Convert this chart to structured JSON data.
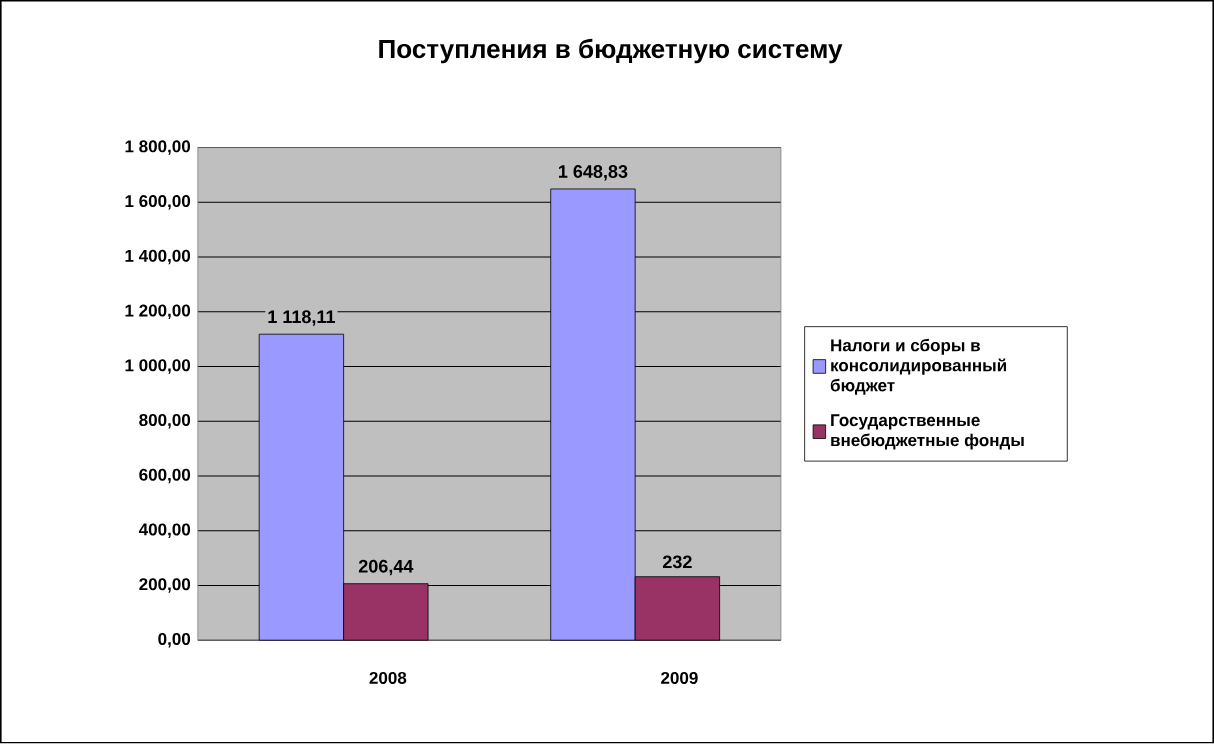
{
  "chart_data": {
    "type": "bar",
    "title": "Поступления в бюджетную систему",
    "categories": [
      "2008",
      "2009"
    ],
    "series": [
      {
        "name": "Налоги и сборы в консолидированный бюджет",
        "color": "#9999ff",
        "values": [
          1118.11,
          1648.83
        ],
        "value_labels": [
          "1 118,11",
          "1 648,83"
        ]
      },
      {
        "name": "Государственные внебюджетные фонды",
        "color": "#993366",
        "values": [
          206.44,
          232
        ],
        "value_labels": [
          "206,44",
          "232"
        ]
      }
    ],
    "ylim": [
      0,
      1800
    ],
    "yticks": [
      {
        "value": 0,
        "label": "0,00"
      },
      {
        "value": 200,
        "label": "200,00"
      },
      {
        "value": 400,
        "label": "400,00"
      },
      {
        "value": 600,
        "label": "600,00"
      },
      {
        "value": 800,
        "label": "800,00"
      },
      {
        "value": 1000,
        "label": "1 000,00"
      },
      {
        "value": 1200,
        "label": "1 200,00"
      },
      {
        "value": 1400,
        "label": "1 400,00"
      },
      {
        "value": 1600,
        "label": "1 600,00"
      },
      {
        "value": 1800,
        "label": "1 800,00"
      }
    ],
    "grid": "y",
    "legend": "right"
  }
}
